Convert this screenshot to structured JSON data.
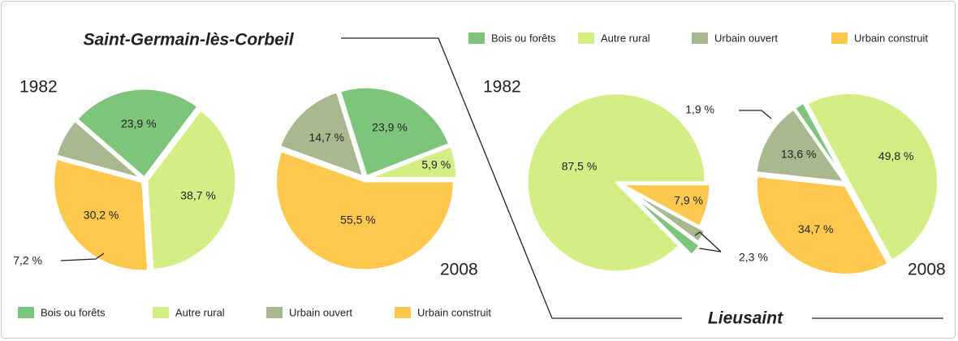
{
  "places": [
    {
      "name": "Saint-Germain-lès-Corbeil"
    },
    {
      "name": "Lieusaint"
    }
  ],
  "chart_data": [
    {
      "type": "pie",
      "title": "1982",
      "start_angle": -49,
      "categories": [
        "Bois ou forêts",
        "Autre rural",
        "Urbain construit",
        "Urbain ouvert"
      ],
      "values": [
        23.9,
        38.7,
        30.2,
        7.2
      ],
      "value_labels": [
        "23,9 %",
        "38,7 %",
        "30,2 %",
        "7,2 %"
      ],
      "colors": [
        "#7dc57a",
        "#d3ee85",
        "#fec84f",
        "#a9b98f"
      ]
    },
    {
      "type": "pie",
      "title": "2008",
      "start_angle": 90,
      "categories": [
        "Urbain construit",
        "Urbain ouvert",
        "Bois ou forêts",
        "Autre rural"
      ],
      "values": [
        55.5,
        14.7,
        23.9,
        5.9
      ],
      "value_labels": [
        "55,5 %",
        "14,7 %",
        "23,9 %",
        "5,9 %"
      ],
      "colors": [
        "#fec84f",
        "#a9b98f",
        "#7dc57a",
        "#d3ee85"
      ]
    },
    {
      "type": "pie",
      "title": "1982",
      "start_angle": 90,
      "categories": [
        "Urbain construit",
        "Urbain ouvert",
        "Bois ou forêts",
        "Autre rural"
      ],
      "values": [
        7.9,
        2.3,
        2.3,
        87.5
      ],
      "value_labels": [
        "7,9 %",
        "2,3 %",
        null,
        "87,5 %"
      ],
      "colors": [
        "#fec84f",
        "#a9b98f",
        "#7dc57a",
        "#d3ee85"
      ]
    },
    {
      "type": "pie",
      "title": "2008",
      "start_angle": -28,
      "categories": [
        "Autre rural",
        "Urbain construit",
        "Urbain ouvert",
        "Bois ou forêts"
      ],
      "values": [
        49.8,
        34.7,
        13.6,
        1.9
      ],
      "value_labels": [
        "49,8 %",
        "34,7 %",
        "13,6 %",
        "1,9 %"
      ],
      "colors": [
        "#d3ee85",
        "#fec84f",
        "#a9b98f",
        "#7dc57a"
      ]
    }
  ]
}
